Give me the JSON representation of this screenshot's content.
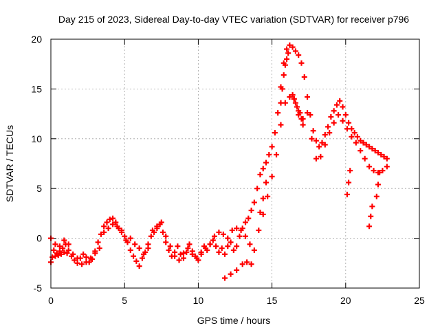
{
  "chart_data": {
    "type": "scatter",
    "title": "Day 215 of 2023, Sidereal Day-to-day VTEC variation (SDTVAR) for receiver p796",
    "xlabel": "GPS time / hours",
    "ylabel": "SDTVAR / TECUs",
    "xlim": [
      0,
      25
    ],
    "ylim": [
      -5,
      20
    ],
    "xticks": [
      0,
      5,
      10,
      15,
      20,
      25
    ],
    "yticks": [
      -5,
      0,
      5,
      10,
      15,
      20
    ],
    "xtick_labels": [
      "0",
      "5",
      "10",
      "15",
      "20",
      "25"
    ],
    "ytick_labels": [
      "-5",
      "0",
      "5",
      "10",
      "15",
      "20"
    ],
    "grid": true,
    "marker": "+",
    "series": [
      {
        "name": "p796",
        "color": "#ff0000",
        "x": [
          0.0,
          0.1,
          0.2,
          0.3,
          0.4,
          0.5,
          0.6,
          0.7,
          0.8,
          0.9,
          1.0,
          1.1,
          1.2,
          1.4,
          1.6,
          1.8,
          2.0,
          2.2,
          2.4,
          2.6,
          2.8,
          3.0,
          3.2,
          3.4,
          3.6,
          3.8,
          4.0,
          4.2,
          4.4,
          4.6,
          4.8,
          5.0,
          5.2,
          5.4,
          5.6,
          5.8,
          6.0,
          6.2,
          6.4,
          6.6,
          6.8,
          7.0,
          7.2,
          7.4,
          7.6,
          7.8,
          8.0,
          8.2,
          8.4,
          8.6,
          8.8,
          9.0,
          9.2,
          9.4,
          9.6,
          9.8,
          10.0,
          10.2,
          10.4,
          10.6,
          10.8,
          11.0,
          11.2,
          11.4,
          11.6,
          11.8,
          12.0,
          12.2,
          12.4,
          12.6,
          12.8,
          13.0,
          13.2,
          13.4,
          13.6,
          13.8,
          14.0,
          14.2,
          14.4,
          14.6,
          14.8,
          15.0,
          15.2,
          15.4,
          15.6,
          15.8,
          16.0,
          16.2,
          16.4,
          16.6,
          16.8,
          17.0,
          17.2,
          17.4,
          17.6,
          17.8,
          18.0,
          18.2,
          18.4,
          18.6,
          18.8,
          19.0,
          19.2,
          19.4,
          19.6,
          19.8,
          20.0,
          20.2,
          20.4,
          20.6,
          20.8,
          21.0,
          21.2,
          21.4,
          21.6,
          21.8,
          22.0,
          22.2,
          22.4,
          22.6,
          22.8,
          0.0,
          0.3,
          0.6,
          0.9,
          1.2,
          1.5,
          1.8,
          2.1,
          2.4,
          2.7,
          3.0,
          3.3,
          3.6,
          3.9,
          4.2,
          4.5,
          4.8,
          5.1,
          5.4,
          5.7,
          6.0,
          6.3,
          6.6,
          6.9,
          7.2,
          7.5,
          7.8,
          8.1,
          8.4,
          8.7,
          9.0,
          9.3,
          9.6,
          9.9,
          10.2,
          10.5,
          10.8,
          11.1,
          11.4,
          11.7,
          12.0,
          12.3,
          12.6,
          12.9,
          13.2,
          13.5,
          13.8,
          14.1,
          14.4,
          14.7,
          15.0,
          15.3,
          15.6,
          15.9,
          16.2,
          16.5,
          16.8,
          17.1,
          17.4,
          17.7,
          18.0,
          18.3,
          18.6,
          18.9,
          19.2,
          19.5,
          19.8,
          20.1,
          20.4,
          20.7,
          21.0,
          21.3,
          21.6,
          21.9,
          22.2,
          22.5,
          22.8,
          11.8,
          12.2,
          12.6,
          13.0,
          13.3,
          13.6,
          16.4,
          16.5,
          16.6,
          16.7,
          16.8,
          16.9,
          17.0,
          17.1,
          15.6,
          15.7,
          15.8,
          15.9,
          16.0,
          16.1,
          21.6,
          21.7,
          21.8,
          20.1,
          20.2,
          20.3,
          22.1,
          22.2,
          22.3,
          14.2,
          14.4,
          14.6
        ],
        "y": [
          -2.4,
          -1.9,
          -1.2,
          -1.8,
          -1.5,
          -1.7,
          -1.3,
          -1.6,
          -1.0,
          -1.4,
          -0.6,
          -1.5,
          -1.2,
          -1.8,
          -2.2,
          -2.5,
          -2.0,
          -1.6,
          -1.9,
          -2.4,
          -2.1,
          -1.3,
          -0.4,
          0.4,
          1.2,
          1.6,
          1.9,
          2.0,
          1.6,
          1.0,
          0.8,
          0.2,
          -0.4,
          -1.2,
          -1.8,
          -2.3,
          -2.8,
          -2.0,
          -1.4,
          -0.6,
          0.2,
          0.6,
          1.2,
          1.4,
          0.6,
          -0.4,
          -1.2,
          -1.8,
          -1.4,
          -0.8,
          -1.6,
          -2.0,
          -1.4,
          -0.6,
          -1.3,
          -1.8,
          -2.2,
          -1.6,
          -0.8,
          -1.2,
          -0.6,
          -0.2,
          -0.8,
          -1.4,
          -1.0,
          -1.6,
          -0.8,
          -0.4,
          -1.2,
          -0.8,
          0.2,
          1.0,
          1.6,
          2.0,
          2.8,
          3.6,
          5.0,
          6.4,
          7.0,
          7.6,
          8.4,
          9.2,
          10.6,
          12.6,
          15.2,
          17.6,
          19.0,
          19.4,
          19.2,
          18.8,
          18.4,
          17.6,
          16.2,
          14.2,
          12.4,
          10.8,
          9.8,
          9.2,
          9.6,
          10.4,
          11.2,
          12.2,
          12.8,
          13.4,
          13.8,
          13.2,
          12.4,
          11.6,
          11.0,
          10.6,
          10.2,
          9.8,
          9.6,
          9.4,
          9.2,
          9.0,
          8.8,
          8.6,
          8.4,
          8.2,
          8.0,
          0.0,
          -0.6,
          -0.8,
          -0.2,
          -0.6,
          -1.6,
          -2.0,
          -2.6,
          -2.4,
          -2.0,
          -1.5,
          -1.0,
          0.6,
          1.0,
          1.4,
          1.2,
          0.6,
          -0.2,
          0.0,
          -0.6,
          -1.0,
          -1.6,
          -1.0,
          0.8,
          1.0,
          1.6,
          0.2,
          -0.8,
          -1.8,
          -2.2,
          -1.5,
          -1.0,
          -1.6,
          -2.0,
          -1.4,
          -1.0,
          -0.6,
          0.2,
          0.6,
          0.4,
          0.0,
          0.8,
          1.0,
          0.8,
          0.2,
          -0.6,
          -1.2,
          0.8,
          2.4,
          4.2,
          6.2,
          8.4,
          11.4,
          13.6,
          14.2,
          14.0,
          12.4,
          12.0,
          12.6,
          10.0,
          8.0,
          8.2,
          9.4,
          10.6,
          11.6,
          12.4,
          11.8,
          11.0,
          10.2,
          9.6,
          8.8,
          8.0,
          7.2,
          6.8,
          6.6,
          6.8,
          7.2,
          -4.0,
          -3.6,
          -3.2,
          -2.6,
          -2.4,
          -2.6,
          14.4,
          14.0,
          13.6,
          13.2,
          12.8,
          12.6,
          12.0,
          11.4,
          13.6,
          15.0,
          16.4,
          17.4,
          18.0,
          18.6,
          1.2,
          2.2,
          3.2,
          4.4,
          5.6,
          6.8,
          4.2,
          5.4,
          6.6,
          2.6,
          4.0,
          5.6
        ]
      }
    ]
  }
}
